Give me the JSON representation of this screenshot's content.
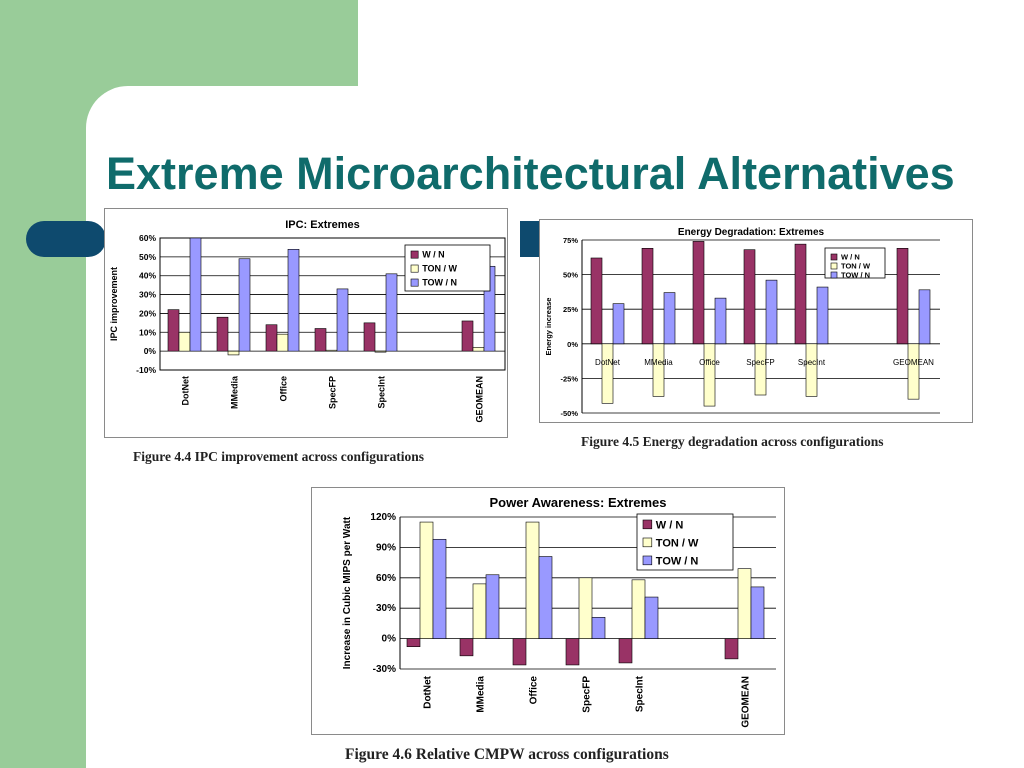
{
  "slide": {
    "title": "Extreme Microarchitectural Alternatives"
  },
  "captions": {
    "ipc": "Figure 4.4 IPC improvement across configurations",
    "energy": "Figure 4.5 Energy degradation across configurations",
    "power": "Figure 4.6 Relative CMPW across configurations"
  },
  "colors": {
    "w_n": "#993366",
    "ton_w": "#ffffcc",
    "tow_n": "#9999ff",
    "title": "#0f6b6b",
    "accent": "#0e4a6e",
    "background_panel": "#99cc99"
  },
  "chart_data": [
    {
      "id": "ipc",
      "type": "bar",
      "title": "IPC: Extremes",
      "ylabel": "IPC improvement",
      "xlabel": "",
      "ylim": [
        -10,
        60
      ],
      "yticks": [
        "-10%",
        "0%",
        "10%",
        "20%",
        "30%",
        "40%",
        "50%",
        "60%"
      ],
      "tick_values": [
        -10,
        0,
        10,
        20,
        30,
        40,
        50,
        60
      ],
      "categories": [
        "DotNet",
        "MMedia",
        "Office",
        "SpecFP",
        "SpecInt",
        "",
        "GEOMEAN"
      ],
      "legend_position": "top-right",
      "grid": true,
      "series": [
        {
          "name": "W / N",
          "values": [
            22,
            18,
            14,
            12,
            15,
            null,
            16
          ]
        },
        {
          "name": "TON / W",
          "values": [
            10,
            -2,
            9,
            0.5,
            -0.5,
            null,
            2
          ]
        },
        {
          "name": "TOW / N",
          "values": [
            60,
            49,
            54,
            33,
            41,
            null,
            45
          ]
        }
      ]
    },
    {
      "id": "energy",
      "type": "bar",
      "title": "Energy Degradation: Extremes",
      "ylabel": "Energy increase",
      "xlabel": "",
      "ylim": [
        -50,
        75
      ],
      "yticks": [
        "-50%",
        "-25%",
        "0%",
        "25%",
        "50%",
        "75%"
      ],
      "tick_values": [
        -50,
        -25,
        0,
        25,
        50,
        75
      ],
      "categories": [
        "DotNet",
        "MMedia",
        "Office",
        "SpecFP",
        "SpecInt",
        "",
        "GEOMEAN"
      ],
      "legend_position": "top-right",
      "grid": true,
      "series": [
        {
          "name": "W / N",
          "values": [
            62,
            69,
            74,
            68,
            72,
            null,
            69
          ]
        },
        {
          "name": "TON / W",
          "values": [
            -43,
            -38,
            -45,
            -37,
            -38,
            null,
            -40
          ]
        },
        {
          "name": "TOW / N",
          "values": [
            29,
            37,
            33,
            46,
            41,
            null,
            39
          ]
        }
      ]
    },
    {
      "id": "power",
      "type": "bar",
      "title": "Power Awareness: Extremes",
      "ylabel": "Increase in Cubic MIPS per Watt",
      "xlabel": "",
      "ylim": [
        -30,
        120
      ],
      "yticks": [
        "-30%",
        "0%",
        "30%",
        "60%",
        "90%",
        "120%"
      ],
      "tick_values": [
        -30,
        0,
        30,
        60,
        90,
        120
      ],
      "categories": [
        "DotNet",
        "MMedia",
        "Office",
        "SpecFP",
        "SpecInt",
        "",
        "GEOMEAN"
      ],
      "legend_position": "top-right",
      "grid": true,
      "series": [
        {
          "name": "W / N",
          "values": [
            -8,
            -17,
            -26,
            -26,
            -24,
            null,
            -20
          ]
        },
        {
          "name": "TON / W",
          "values": [
            115,
            54,
            115,
            60,
            58,
            null,
            69
          ]
        },
        {
          "name": "TOW / N",
          "values": [
            98,
            63,
            81,
            21,
            41,
            null,
            51
          ]
        }
      ]
    }
  ]
}
